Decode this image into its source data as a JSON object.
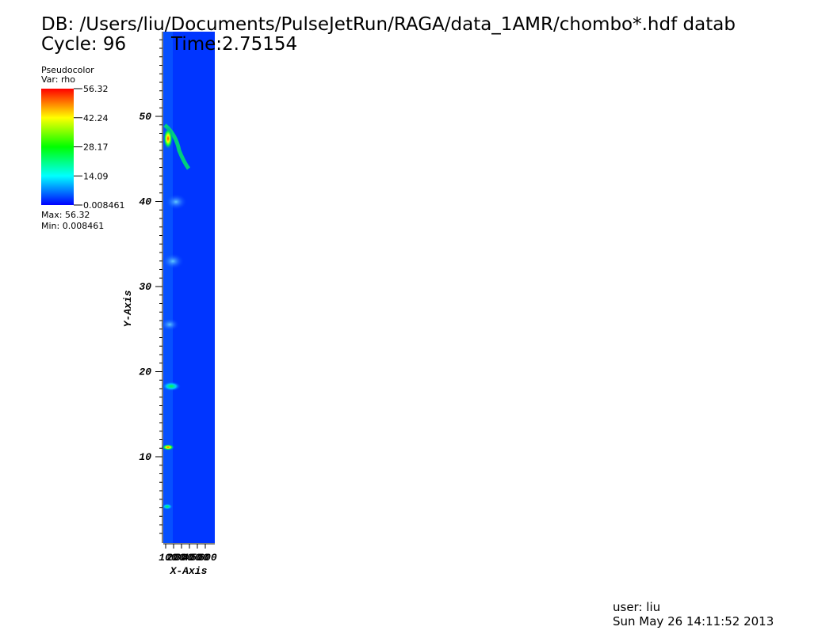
{
  "header": {
    "db": "DB: /Users/liu/Documents/PulseJetRun/RAGA/data_1AMR/chombo*.hdf datab",
    "cycle": "Cycle: 96",
    "time": "Time:2.75154"
  },
  "legend": {
    "title": "Pseudocolor",
    "var": "Var: rho",
    "labels": [
      "56.32",
      "42.24",
      "28.17",
      "14.09",
      "0.008461"
    ],
    "max": "Max: 56.32",
    "min": "Min: 0.008461"
  },
  "plot": {
    "yticks": [
      10,
      20,
      30,
      40,
      50
    ],
    "xticks": [
      "100",
      "200",
      "300",
      "400",
      "500",
      "600"
    ],
    "y_label": "Y-Axis",
    "x_label": "X-Axis"
  },
  "footer": {
    "user": "user: liu",
    "date": "Sun May 26 14:11:52 2013"
  }
}
